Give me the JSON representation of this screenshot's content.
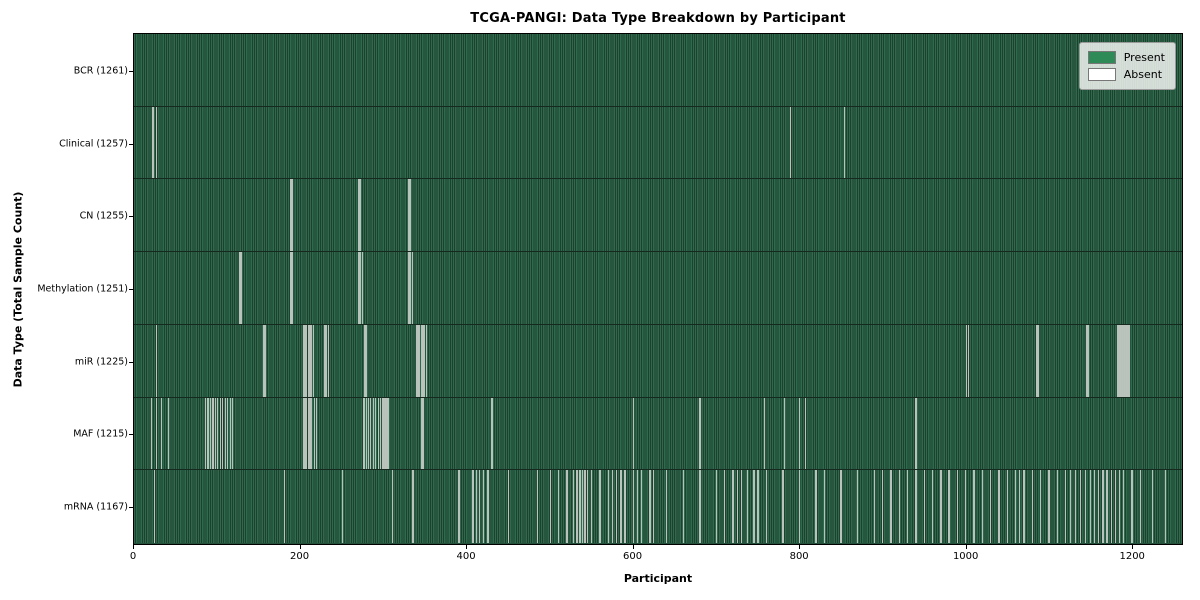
{
  "chart_data": {
    "type": "heatmap",
    "title": "TCGA-PANGI: Data Type Breakdown by Participant",
    "xlabel": "Participant",
    "ylabel": "Data Type (Total Sample Count)",
    "x_ticks": [
      0,
      200,
      400,
      600,
      800,
      1000,
      1200
    ],
    "x_max": 1261,
    "total_participants": 1261,
    "grid": false,
    "legend_position": "upper right",
    "legend": [
      {
        "label": "Present",
        "color": "#2e8b57"
      },
      {
        "label": "Absent",
        "color": "#ffffff"
      }
    ],
    "colors": {
      "present_stripe_light": "#2e6b4e",
      "present_stripe_dark": "#20402e",
      "absent_line": "#c2c9c2",
      "row_separator": "#15291f",
      "frame": "#000000",
      "background": "#ffffff"
    },
    "rows": [
      {
        "data_type": "BCR",
        "count": 1261,
        "label": "BCR (1261)",
        "absent": []
      },
      {
        "data_type": "Clinical",
        "count": 1257,
        "label": "Clinical (1257)",
        "absent": [
          22,
          26,
          789,
          854
        ]
      },
      {
        "data_type": "CN",
        "count": 1255,
        "label": "CN (1255)",
        "absent": [
          188,
          190,
          270,
          272,
          330,
          332
        ]
      },
      {
        "data_type": "Methylation",
        "count": 1251,
        "label": "Methylation (1251)",
        "absent": [
          126,
          128,
          188,
          190,
          270,
          272,
          274,
          330,
          332,
          334
        ]
      },
      {
        "data_type": "miR",
        "count": 1225,
        "label": "miR (1225)",
        "absent": [
          26,
          155,
          157,
          203,
          205,
          207,
          209,
          211,
          213,
          215,
          229,
          231,
          233,
          277,
          279,
          339,
          341,
          343,
          345,
          347,
          349,
          351,
          1001,
          1003,
          1085,
          1087,
          1145,
          1147,
          1183,
          1185,
          1187,
          1189,
          1191,
          1193,
          1195,
          1197
        ]
      },
      {
        "data_type": "MAF",
        "count": 1215,
        "label": "MAF (1215)",
        "absent": [
          20,
          26,
          32,
          41,
          85,
          88,
          91,
          94,
          97,
          100,
          103,
          106,
          109,
          112,
          115,
          118,
          203,
          205,
          207,
          209,
          211,
          213,
          216,
          219,
          276,
          279,
          281,
          284,
          287,
          290,
          293,
          296,
          299,
          301,
          303,
          305,
          345,
          347,
          430,
          600,
          680,
          758,
          782,
          800,
          807,
          940
        ]
      },
      {
        "data_type": "mRNA",
        "count": 1167,
        "label": "mRNA (1167)",
        "absent": [
          24,
          180,
          250,
          310,
          335,
          390,
          407,
          411,
          415,
          420,
          425,
          450,
          485,
          500,
          510,
          520,
          528,
          532,
          536,
          539,
          542,
          545,
          550,
          560,
          570,
          575,
          580,
          585,
          590,
          600,
          605,
          610,
          620,
          624,
          640,
          660,
          680,
          700,
          710,
          720,
          725,
          730,
          737,
          745,
          750,
          760,
          780,
          800,
          820,
          830,
          850,
          870,
          890,
          900,
          910,
          920,
          930,
          940,
          950,
          960,
          970,
          980,
          990,
          1000,
          1010,
          1020,
          1030,
          1040,
          1050,
          1060,
          1065,
          1070,
          1080,
          1090,
          1100,
          1110,
          1120,
          1126,
          1132,
          1138,
          1144,
          1150,
          1155,
          1160,
          1165,
          1170,
          1175,
          1180,
          1185,
          1190,
          1200,
          1210,
          1225,
          1240
        ]
      }
    ]
  }
}
